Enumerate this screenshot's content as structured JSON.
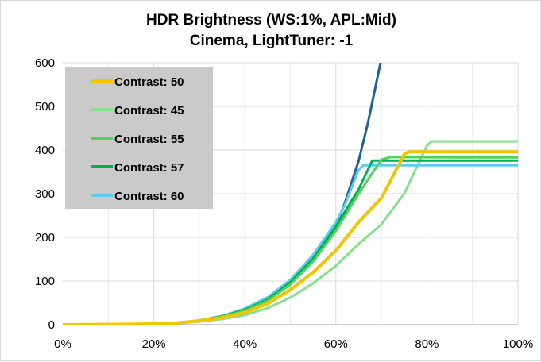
{
  "chart_data": {
    "type": "line",
    "title": [
      "HDR Brightness (WS:1%, APL:Mid)",
      "Cinema, LightTuner: -1"
    ],
    "xlabel": "",
    "ylabel": "",
    "xlim": [
      0,
      100
    ],
    "ylim": [
      0,
      600
    ],
    "x_ticks": [
      "0%",
      "20%",
      "40%",
      "60%",
      "80%",
      "100%"
    ],
    "y_ticks": [
      "0",
      "100",
      "200",
      "300",
      "400",
      "500",
      "600"
    ],
    "grid": true,
    "legend_position": "top-left",
    "series": [
      {
        "name": "Contrast: 50",
        "color": "#f2c500",
        "in_legend": true,
        "x": [
          0,
          15,
          20,
          25,
          30,
          35,
          40,
          45,
          50,
          55,
          60,
          65,
          70,
          75,
          76,
          85,
          100
        ],
        "y": [
          0,
          1,
          2,
          4,
          9,
          16,
          28,
          48,
          80,
          120,
          170,
          235,
          290,
          390,
          396,
          396,
          396
        ]
      },
      {
        "name": "Contrast: 45",
        "color": "#86e08e",
        "in_legend": true,
        "x": [
          0,
          20,
          25,
          30,
          35,
          40,
          45,
          50,
          55,
          60,
          65,
          70,
          75,
          80,
          81,
          95,
          100
        ],
        "y": [
          0,
          1,
          3,
          7,
          13,
          22,
          38,
          62,
          95,
          135,
          185,
          230,
          300,
          410,
          420,
          420,
          420
        ]
      },
      {
        "name": "Contrast: 55",
        "color": "#4fd35c",
        "in_legend": true,
        "x": [
          0,
          20,
          25,
          30,
          35,
          40,
          45,
          50,
          55,
          60,
          65,
          70,
          72,
          85,
          100
        ],
        "y": [
          0,
          1,
          4,
          9,
          18,
          32,
          55,
          92,
          145,
          215,
          300,
          378,
          384,
          383,
          383
        ]
      },
      {
        "name": "Contrast: 57",
        "color": "#00b050",
        "in_legend": true,
        "x": [
          0,
          20,
          25,
          30,
          35,
          40,
          45,
          50,
          55,
          60,
          65,
          68,
          80,
          100
        ],
        "y": [
          0,
          1,
          4,
          9,
          19,
          34,
          58,
          97,
          152,
          225,
          310,
          376,
          376,
          376
        ]
      },
      {
        "name": "Contrast: 60",
        "color": "#5ecbf5",
        "in_legend": true,
        "x": [
          0,
          20,
          25,
          30,
          35,
          40,
          45,
          50,
          55,
          60,
          62,
          65,
          66,
          80,
          100
        ],
        "y": [
          0,
          1,
          4,
          10,
          20,
          37,
          63,
          103,
          160,
          235,
          275,
          355,
          365,
          365,
          365
        ]
      },
      {
        "name": "",
        "color": "#1f6390",
        "in_legend": false,
        "x": [
          0,
          20,
          25,
          30,
          35,
          40,
          45,
          50,
          55,
          60,
          62,
          65,
          67,
          69,
          70
        ],
        "y": [
          0,
          1,
          4,
          9,
          19,
          34,
          57,
          95,
          150,
          225,
          280,
          375,
          460,
          560,
          610
        ]
      }
    ]
  }
}
